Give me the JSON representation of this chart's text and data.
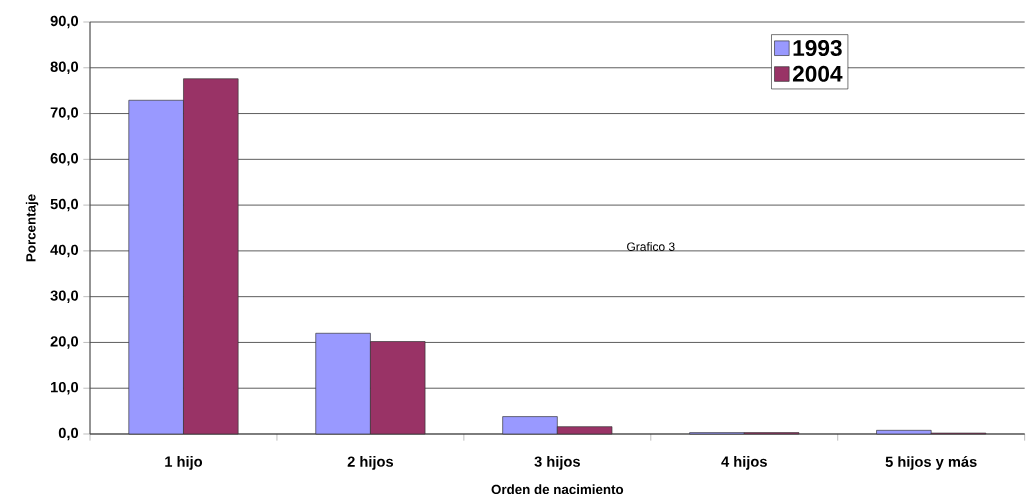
{
  "chart_data": {
    "type": "bar",
    "xlabel": "Orden de nacimiento",
    "ylabel": "Porcentaje",
    "categories": [
      "1 hijo",
      "2 hijos",
      "3 hijos",
      "4 hijos",
      "5 hijos y más"
    ],
    "series": [
      {
        "name": "1993",
        "color": "#9999ff",
        "values": [
          72.9,
          22.0,
          3.8,
          0.3,
          0.8
        ]
      },
      {
        "name": "2004",
        "color": "#993366",
        "values": [
          77.6,
          20.2,
          1.6,
          0.3,
          0.2
        ]
      }
    ],
    "ylim": [
      0,
      90
    ],
    "yticks": [
      {
        "value": 0,
        "label": "0,0"
      },
      {
        "value": 10,
        "label": "10,0"
      },
      {
        "value": 20,
        "label": "20,0"
      },
      {
        "value": 30,
        "label": "30,0"
      },
      {
        "value": 40,
        "label": "40,0"
      },
      {
        "value": 50,
        "label": "50,0"
      },
      {
        "value": 60,
        "label": "60,0"
      },
      {
        "value": 70,
        "label": "70,0"
      },
      {
        "value": 80,
        "label": "80,0"
      },
      {
        "value": 90,
        "label": "90,0"
      }
    ],
    "grid": "y",
    "legend": "top right",
    "annotations": [
      "Grafico 3"
    ]
  }
}
